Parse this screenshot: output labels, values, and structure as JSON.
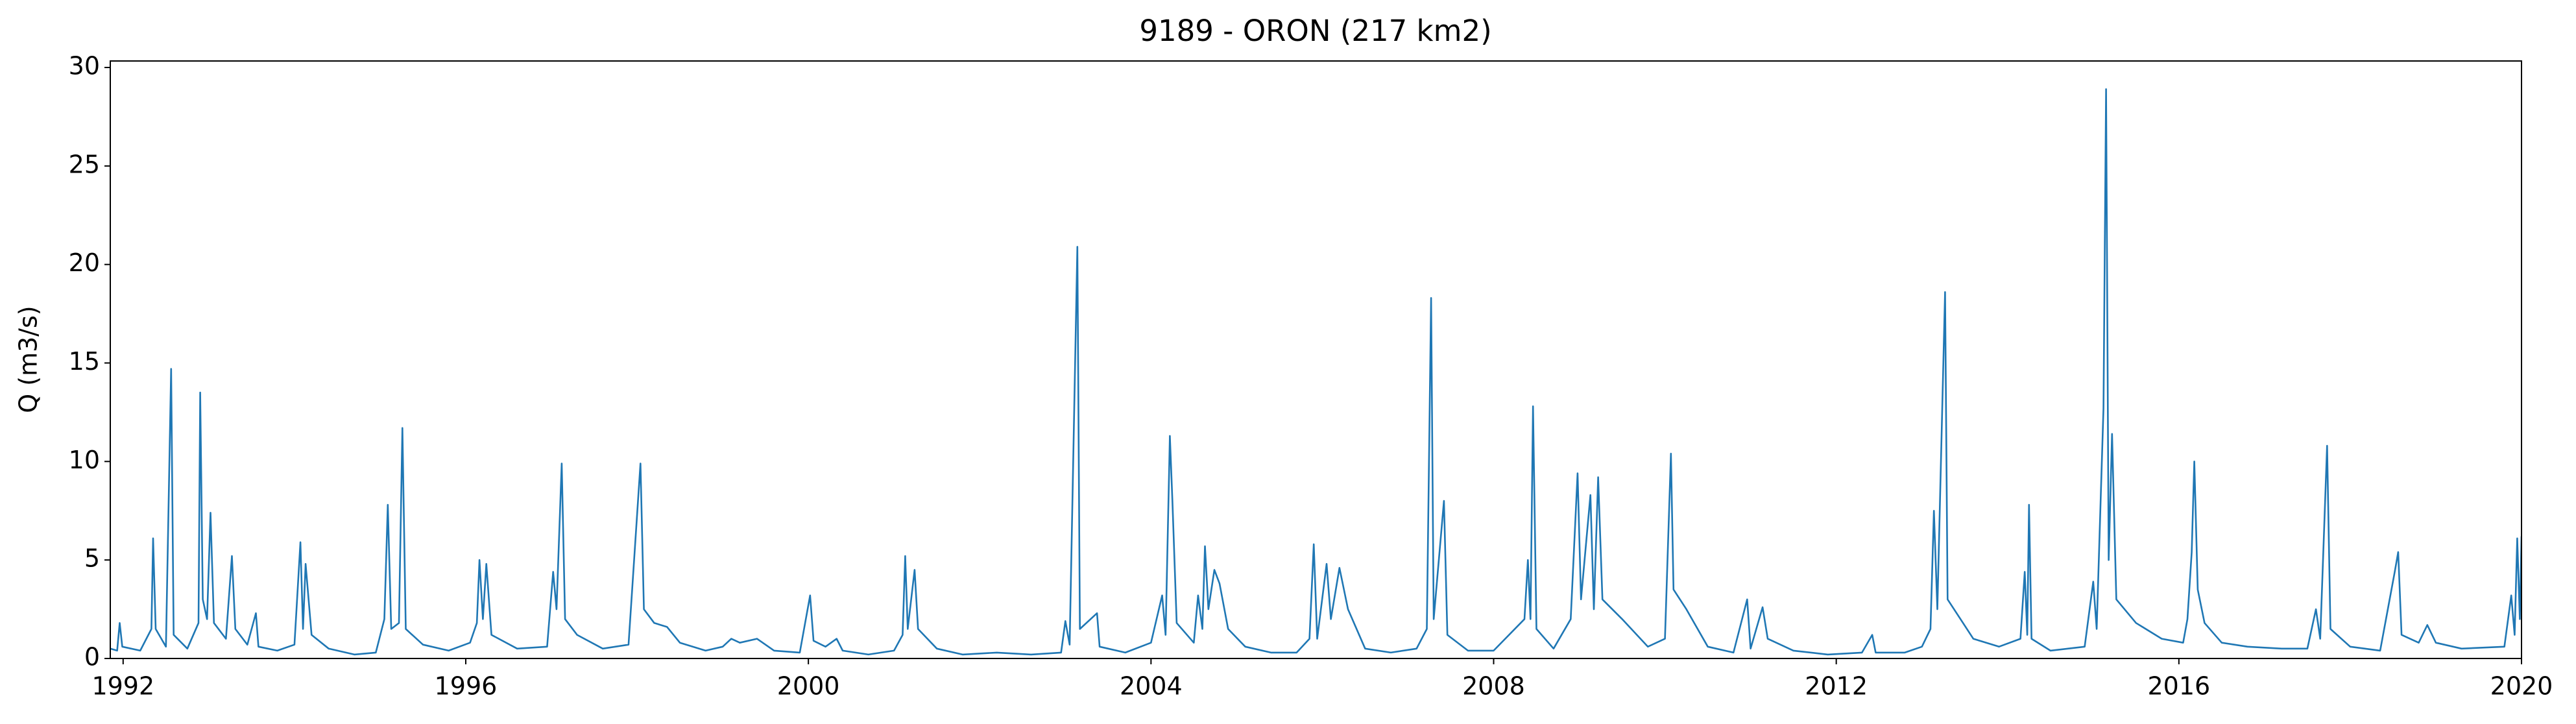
{
  "chart_data": {
    "type": "line",
    "title": "9189 - ORON (217 km2)",
    "ylabel": "Q (m3/s)",
    "color": "#1f77b4",
    "xlim": [
      1991.85,
      2020
    ],
    "ylim": [
      0,
      30.33
    ],
    "xticks": [
      1992,
      1996,
      2000,
      2004,
      2008,
      2012,
      2016,
      2020
    ],
    "yticks": [
      0,
      5,
      10,
      15,
      20,
      25,
      30
    ],
    "x": [
      1991.85,
      1991.93,
      1991.96,
      1991.99,
      1992.2,
      1992.33,
      1992.35,
      1992.38,
      1992.5,
      1992.56,
      1992.59,
      1992.75,
      1992.88,
      1992.9,
      1992.93,
      1992.98,
      1993.02,
      1993.06,
      1993.2,
      1993.27,
      1993.31,
      1993.45,
      1993.55,
      1993.58,
      1993.8,
      1994.0,
      1994.07,
      1994.1,
      1994.13,
      1994.2,
      1994.4,
      1994.7,
      1994.95,
      1995.05,
      1995.09,
      1995.13,
      1995.22,
      1995.26,
      1995.3,
      1995.5,
      1995.8,
      1996.05,
      1996.13,
      1996.16,
      1996.2,
      1996.24,
      1996.3,
      1996.6,
      1996.95,
      1997.02,
      1997.06,
      1997.12,
      1997.16,
      1997.3,
      1997.6,
      1997.9,
      1998.04,
      1998.08,
      1998.2,
      1998.35,
      1998.5,
      1998.8,
      1999.0,
      1999.1,
      1999.2,
      1999.4,
      1999.6,
      1999.9,
      2000.02,
      2000.06,
      2000.2,
      2000.33,
      2000.4,
      2000.7,
      2001.0,
      2001.1,
      2001.13,
      2001.16,
      2001.24,
      2001.28,
      2001.5,
      2001.8,
      2002.2,
      2002.6,
      2002.95,
      2003.0,
      2003.05,
      2003.14,
      2003.17,
      2003.37,
      2003.4,
      2003.7,
      2004.0,
      2004.13,
      2004.17,
      2004.22,
      2004.25,
      2004.3,
      2004.5,
      2004.55,
      2004.6,
      2004.63,
      2004.67,
      2004.74,
      2004.8,
      2004.9,
      2005.1,
      2005.4,
      2005.7,
      2005.85,
      2005.9,
      2005.94,
      2006.05,
      2006.1,
      2006.2,
      2006.3,
      2006.5,
      2006.8,
      2007.1,
      2007.22,
      2007.27,
      2007.3,
      2007.42,
      2007.46,
      2007.7,
      2008.0,
      2008.36,
      2008.4,
      2008.43,
      2008.46,
      2008.5,
      2008.7,
      2008.9,
      2008.98,
      2009.02,
      2009.13,
      2009.17,
      2009.22,
      2009.27,
      2009.5,
      2009.8,
      2010.0,
      2010.07,
      2010.1,
      2010.25,
      2010.5,
      2010.8,
      2010.96,
      2011.0,
      2011.14,
      2011.2,
      2011.5,
      2011.9,
      2012.3,
      2012.42,
      2012.46,
      2012.8,
      2013.0,
      2013.1,
      2013.14,
      2013.18,
      2013.27,
      2013.3,
      2013.48,
      2013.6,
      2013.9,
      2014.15,
      2014.2,
      2014.23,
      2014.25,
      2014.28,
      2014.5,
      2014.9,
      2015.0,
      2015.04,
      2015.12,
      2015.15,
      2015.18,
      2015.22,
      2015.27,
      2015.5,
      2015.8,
      2016.05,
      2016.1,
      2016.15,
      2016.18,
      2016.22,
      2016.3,
      2016.5,
      2016.8,
      2017.2,
      2017.5,
      2017.6,
      2017.65,
      2017.73,
      2017.77,
      2018.0,
      2018.35,
      2018.52,
      2018.56,
      2018.6,
      2018.8,
      2018.9,
      2019.0,
      2019.3,
      2019.8,
      2019.88,
      2019.92,
      2019.95,
      2019.98,
      2020.0
    ],
    "values": [
      0.5,
      0.4,
      1.8,
      0.6,
      0.4,
      1.5,
      6.1,
      1.5,
      0.6,
      14.7,
      1.2,
      0.5,
      1.8,
      13.5,
      3.0,
      2.0,
      7.4,
      1.8,
      1.0,
      5.2,
      1.5,
      0.7,
      2.3,
      0.6,
      0.4,
      0.7,
      5.9,
      1.5,
      4.8,
      1.2,
      0.5,
      0.2,
      0.3,
      2.0,
      7.8,
      1.5,
      1.8,
      11.7,
      1.5,
      0.7,
      0.4,
      0.8,
      1.8,
      5.0,
      2.0,
      4.8,
      1.2,
      0.5,
      0.6,
      4.4,
      2.5,
      9.9,
      2.0,
      1.2,
      0.5,
      0.7,
      9.9,
      2.5,
      1.8,
      1.6,
      0.8,
      0.4,
      0.6,
      1.0,
      0.8,
      1.0,
      0.4,
      0.3,
      3.2,
      0.9,
      0.6,
      1.0,
      0.4,
      0.2,
      0.4,
      1.2,
      5.2,
      1.5,
      4.5,
      1.5,
      0.5,
      0.2,
      0.3,
      0.2,
      0.3,
      1.9,
      0.7,
      20.9,
      1.5,
      2.3,
      0.6,
      0.3,
      0.8,
      3.2,
      1.2,
      11.3,
      8.0,
      1.8,
      0.8,
      3.2,
      1.5,
      5.7,
      2.5,
      4.5,
      3.8,
      1.5,
      0.6,
      0.3,
      0.3,
      1.0,
      5.8,
      1.0,
      4.8,
      2.0,
      4.6,
      2.5,
      0.5,
      0.3,
      0.5,
      1.5,
      18.3,
      2.0,
      8.0,
      1.2,
      0.4,
      0.4,
      2.0,
      5.0,
      2.0,
      12.8,
      1.5,
      0.5,
      2.0,
      9.4,
      3.0,
      8.3,
      2.5,
      9.2,
      3.0,
      2.0,
      0.6,
      1.0,
      10.4,
      3.5,
      2.5,
      0.6,
      0.3,
      3.0,
      0.5,
      2.6,
      1.0,
      0.4,
      0.2,
      0.3,
      1.2,
      0.3,
      0.3,
      0.6,
      1.5,
      7.5,
      2.5,
      18.6,
      3.0,
      1.8,
      1.0,
      0.6,
      1.0,
      4.4,
      1.2,
      7.8,
      1.0,
      0.4,
      0.6,
      3.9,
      1.5,
      12.7,
      28.9,
      5.0,
      11.4,
      3.0,
      1.8,
      1.0,
      0.8,
      2.0,
      5.4,
      10.0,
      3.5,
      1.8,
      0.8,
      0.6,
      0.5,
      0.5,
      2.5,
      1.0,
      10.8,
      1.5,
      0.6,
      0.4,
      4.4,
      5.4,
      1.2,
      0.8,
      1.7,
      0.8,
      0.5,
      0.6,
      3.2,
      1.2,
      6.1,
      2.0,
      6.2
    ]
  }
}
